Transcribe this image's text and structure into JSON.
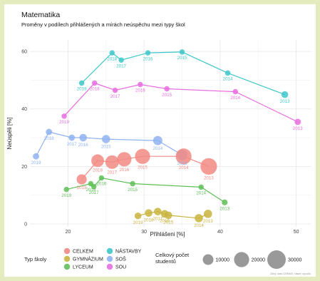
{
  "chart_data": {
    "type": "scatter",
    "title": "Matematika",
    "subtitle": "Proměny v podílech přihlášených a mírách neúspěchu mezi typy škol",
    "xlabel": "Přihlášeni [%]",
    "ylabel": "Neúspěli [%]",
    "xlim": [
      15,
      52
    ],
    "ylim": [
      -1,
      64
    ],
    "x_ticks": [
      20,
      30,
      40,
      50
    ],
    "y_ticks": [
      0,
      20,
      40,
      60
    ],
    "grid": true,
    "series": [
      {
        "name": "NÁSTAVBY",
        "color": "#3ec7c9",
        "points": [
          {
            "x": 21.8,
            "y": 49.0,
            "size": 2500,
            "label": "2019"
          },
          {
            "x": 25.8,
            "y": 59.5,
            "size": 2500,
            "label": "2018"
          },
          {
            "x": 27.0,
            "y": 57.0,
            "size": 2500,
            "label": "2017"
          },
          {
            "x": 30.5,
            "y": 59.5,
            "size": 2500,
            "label": "2016"
          },
          {
            "x": 35.0,
            "y": 59.8,
            "size": 2500,
            "label": "2015"
          },
          {
            "x": 41.0,
            "y": 52.5,
            "size": 2500,
            "label": "2014"
          },
          {
            "x": 48.5,
            "y": 45.0,
            "size": 4000,
            "label": "2013"
          }
        ]
      },
      {
        "name": "SOU",
        "color": "#e86de0",
        "points": [
          {
            "x": 19.5,
            "y": 37.5,
            "size": 2500,
            "label": "2019"
          },
          {
            "x": 23.5,
            "y": 49.0,
            "size": 2500,
            "label": "2018"
          },
          {
            "x": 26.2,
            "y": 46.5,
            "size": 2500,
            "label": "2017"
          },
          {
            "x": 29.5,
            "y": 48.5,
            "size": 2500,
            "label": "2016"
          },
          {
            "x": 33.0,
            "y": 47.0,
            "size": 2500,
            "label": "2015"
          },
          {
            "x": 42.0,
            "y": 46.0,
            "size": 2500,
            "label": "2014"
          },
          {
            "x": 50.2,
            "y": 35.5,
            "size": 3500,
            "label": "2013"
          }
        ]
      },
      {
        "name": "SOŠ",
        "color": "#8fb3f2",
        "points": [
          {
            "x": 15.8,
            "y": 23.5,
            "size": 3500,
            "label": "2019"
          },
          {
            "x": 17.5,
            "y": 32.0,
            "size": 3500,
            "label": "2018"
          },
          {
            "x": 20.5,
            "y": 30.0,
            "size": 3500,
            "label": "2017"
          },
          {
            "x": 22.0,
            "y": 30.0,
            "size": 5000,
            "label": "2016"
          },
          {
            "x": 25.0,
            "y": 29.5,
            "size": 6000,
            "label": "2015"
          },
          {
            "x": 31.8,
            "y": 29.0,
            "size": 7500,
            "label": "2014"
          },
          {
            "x": 35.0,
            "y": 24.0,
            "size": 10000,
            "label": "2013"
          }
        ]
      },
      {
        "name": "CELKEM",
        "color": "#f28a83",
        "points": [
          {
            "x": 21.8,
            "y": 15.5,
            "size": 9000,
            "label": "2019"
          },
          {
            "x": 23.9,
            "y": 22.0,
            "size": 14000,
            "label": "2018"
          },
          {
            "x": 25.8,
            "y": 21.5,
            "size": 16000,
            "label": "2017"
          },
          {
            "x": 27.4,
            "y": 22.5,
            "size": 18000,
            "label": "2016"
          },
          {
            "x": 29.8,
            "y": 23.5,
            "size": 20000,
            "label": "2015"
          },
          {
            "x": 35.2,
            "y": 23.5,
            "size": 22000,
            "label": "2014"
          },
          {
            "x": 38.5,
            "y": 20.0,
            "size": 24000,
            "label": "2013"
          }
        ]
      },
      {
        "name": "LYCEUM",
        "color": "#5fbf57",
        "points": [
          {
            "x": 19.8,
            "y": 12.0,
            "size": 2500,
            "label": "2019"
          },
          {
            "x": 23.0,
            "y": 14.0,
            "size": 2500,
            "label": "2018"
          },
          {
            "x": 23.4,
            "y": 13.0,
            "size": 2500,
            "label": "2017"
          },
          {
            "x": 24.4,
            "y": 16.0,
            "size": 2500,
            "label": "2016"
          },
          {
            "x": 28.5,
            "y": 14.0,
            "size": 2500,
            "label": "2015"
          },
          {
            "x": 37.5,
            "y": 12.8,
            "size": 2500,
            "label": "2014"
          },
          {
            "x": 40.6,
            "y": 7.5,
            "size": 3000,
            "label": "2013"
          }
        ]
      },
      {
        "name": "GYMNÁZIUM",
        "color": "#c9b440",
        "points": [
          {
            "x": 29.2,
            "y": 2.8,
            "size": 4000,
            "label": "2019"
          },
          {
            "x": 30.6,
            "y": 3.8,
            "size": 5000,
            "label": "2018"
          },
          {
            "x": 31.8,
            "y": 4.3,
            "size": 5000,
            "label": "2017"
          },
          {
            "x": 32.7,
            "y": 3.5,
            "size": 5000,
            "label": "2016"
          },
          {
            "x": 33.2,
            "y": 3.0,
            "size": 5000,
            "label": "2015"
          },
          {
            "x": 37.2,
            "y": 2.0,
            "size": 6000,
            "label": "2014"
          },
          {
            "x": 38.4,
            "y": 3.5,
            "size": 6000,
            "label": "2013"
          }
        ]
      }
    ],
    "legend": {
      "position": "bottom",
      "type_title": "Typ školy",
      "type_items": [
        "CELKEM",
        "GYMNÁZIUM",
        "LYCEUM",
        "NÁSTAVBY",
        "SOŠ",
        "SOU"
      ],
      "size_title_line1": "Celkový počet",
      "size_title_line2": "studentů",
      "size_items": [
        10000,
        20000,
        30000
      ]
    },
    "credit": "Zdroj: data CERMAT, vlastní výpočty"
  }
}
